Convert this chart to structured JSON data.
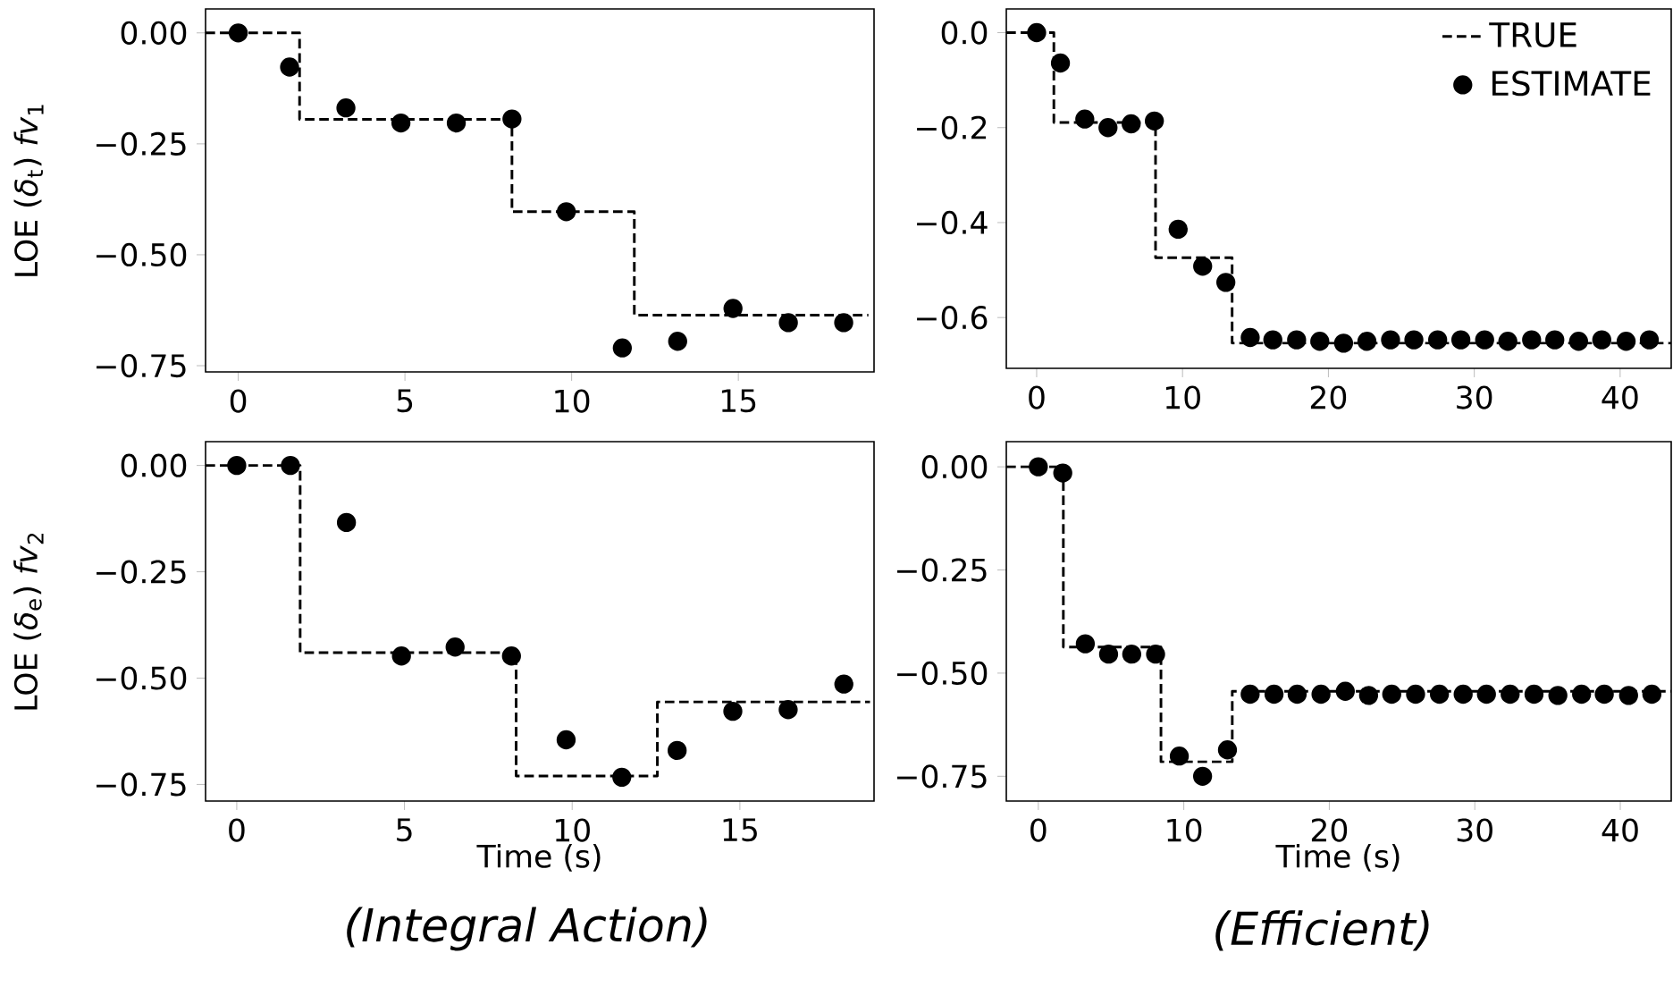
{
  "chart_data": [
    {
      "type": "step",
      "ylabel": "LOE (*δ*$_{t}$) *fv*$_{1}$",
      "xlim": [
        -0.98,
        19.07
      ],
      "ylim": [
        -0.764,
        0.054
      ],
      "xticks": [
        0,
        5,
        10,
        15
      ],
      "yticks": [
        {
          "value": 0,
          "label": "0.00"
        },
        {
          "value": -0.25,
          "label": "−0.25"
        },
        {
          "value": -0.5,
          "label": "−0.50"
        },
        {
          "value": -0.75,
          "label": "−0.75"
        }
      ],
      "series": [
        {
          "color": "#000000",
          "line_style": "dashed",
          "marker": "none",
          "x": [
            -0.98,
            1.84,
            8.21,
            11.88,
            18.9
          ],
          "values": [
            0,
            -0.195,
            -0.403,
            -0.636,
            -0.636
          ]
        },
        {
          "type": "scatter",
          "color": "#000000",
          "marker": "circle",
          "x": [
            0,
            1.54,
            3.23,
            4.88,
            6.54,
            8.21,
            9.84,
            11.52,
            13.18,
            14.84,
            16.5,
            18.16
          ],
          "values": [
            0,
            -0.077,
            -0.169,
            -0.203,
            -0.203,
            -0.194,
            -0.403,
            -0.71,
            -0.695,
            -0.621,
            -0.653,
            -0.653
          ]
        }
      ]
    },
    {
      "type": "step",
      "legend": "top right",
      "xlim": [
        -2.08,
        43.5
      ],
      "ylim": [
        -0.707,
        0.05
      ],
      "xticks": [
        0,
        10,
        20,
        30,
        40
      ],
      "yticks": [
        {
          "value": 0,
          "label": "0.0"
        },
        {
          "value": -0.2,
          "label": "−0.2"
        },
        {
          "value": -0.4,
          "label": "−0.4"
        },
        {
          "value": -0.6,
          "label": "−0.6"
        }
      ],
      "series": [
        {
          "name": "TRUE",
          "color": "#000000",
          "line_style": "dashed",
          "marker": "none",
          "x": [
            -2.08,
            1.18,
            8.15,
            13.4,
            43.5
          ],
          "values": [
            0,
            -0.189,
            -0.474,
            -0.654,
            -0.654
          ]
        },
        {
          "type": "scatter",
          "name": "ESTIMATE",
          "color": "#000000",
          "marker": "circle",
          "x": [
            0,
            1.63,
            3.3,
            4.89,
            6.48,
            8.07,
            9.7,
            11.38,
            12.97,
            14.64,
            16.19,
            17.82,
            19.41,
            21.04,
            22.64,
            24.26,
            25.86,
            27.49,
            29.08,
            30.71,
            32.3,
            33.93,
            35.52,
            37.15,
            38.74,
            40.41,
            42.0
          ],
          "values": [
            0,
            -0.064,
            -0.182,
            -0.2,
            -0.192,
            -0.186,
            -0.414,
            -0.492,
            -0.526,
            -0.642,
            -0.647,
            -0.647,
            -0.65,
            -0.654,
            -0.65,
            -0.647,
            -0.647,
            -0.647,
            -0.647,
            -0.647,
            -0.65,
            -0.647,
            -0.647,
            -0.65,
            -0.647,
            -0.65,
            -0.647
          ]
        }
      ]
    },
    {
      "type": "step",
      "ylabel": "LOE (*δ*$_{e}$) *fv*$_{2}$",
      "xlabel": "Time (s)",
      "annotations": [
        "(Integral Action)"
      ],
      "xlim": [
        -0.93,
        19.0
      ],
      "ylim": [
        -0.789,
        0.056
      ],
      "xticks": [
        0,
        5,
        10,
        15
      ],
      "yticks": [
        {
          "value": 0,
          "label": "0.00"
        },
        {
          "value": -0.25,
          "label": "−0.25"
        },
        {
          "value": -0.5,
          "label": "−0.50"
        },
        {
          "value": -0.75,
          "label": "−0.75"
        }
      ],
      "series": [
        {
          "color": "#000000",
          "line_style": "dashed",
          "marker": "none",
          "x": [
            -0.93,
            1.89,
            8.33,
            12.54,
            18.88
          ],
          "values": [
            0,
            -0.44,
            -0.73,
            -0.556,
            -0.556
          ]
        },
        {
          "type": "scatter",
          "color": "#000000",
          "marker": "circle",
          "x": [
            0,
            1.6,
            3.27,
            4.91,
            6.51,
            8.19,
            9.82,
            11.48,
            13.13,
            14.79,
            16.44,
            18.1
          ],
          "values": [
            0,
            0,
            -0.134,
            -0.448,
            -0.427,
            -0.448,
            -0.645,
            -0.733,
            -0.67,
            -0.578,
            -0.574,
            -0.514
          ]
        }
      ]
    },
    {
      "type": "step",
      "xlabel": "Time (s)",
      "annotations": [
        "(Efficient)"
      ],
      "xlim": [
        -2.2,
        43.5
      ],
      "ylim": [
        -0.81,
        0.061
      ],
      "xticks": [
        0,
        10,
        20,
        30,
        40
      ],
      "yticks": [
        {
          "value": 0,
          "label": "0.00"
        },
        {
          "value": -0.25,
          "label": "−0.25"
        },
        {
          "value": -0.5,
          "label": "−0.50"
        },
        {
          "value": -0.75,
          "label": "−0.75"
        }
      ],
      "series": [
        {
          "color": "#000000",
          "line_style": "dashed",
          "marker": "none",
          "x": [
            -2.2,
            1.72,
            8.43,
            13.33,
            43.5
          ],
          "values": [
            0,
            -0.437,
            -0.715,
            -0.544,
            -0.544
          ]
        },
        {
          "type": "scatter",
          "color": "#000000",
          "marker": "circle",
          "x": [
            0,
            1.68,
            3.23,
            4.83,
            6.42,
            8.06,
            9.69,
            11.29,
            13.0,
            14.56,
            16.2,
            17.79,
            19.43,
            21.1,
            22.7,
            24.29,
            25.93,
            27.57,
            29.2,
            30.8,
            32.43,
            34.07,
            35.71,
            37.34,
            38.9,
            40.57,
            42.17
          ],
          "values": [
            0,
            -0.015,
            -0.429,
            -0.454,
            -0.454,
            -0.454,
            -0.701,
            -0.75,
            -0.686,
            -0.551,
            -0.551,
            -0.551,
            -0.551,
            -0.544,
            -0.554,
            -0.551,
            -0.551,
            -0.551,
            -0.551,
            -0.551,
            -0.551,
            -0.551,
            -0.554,
            -0.551,
            -0.551,
            -0.554,
            -0.551
          ]
        }
      ]
    }
  ]
}
